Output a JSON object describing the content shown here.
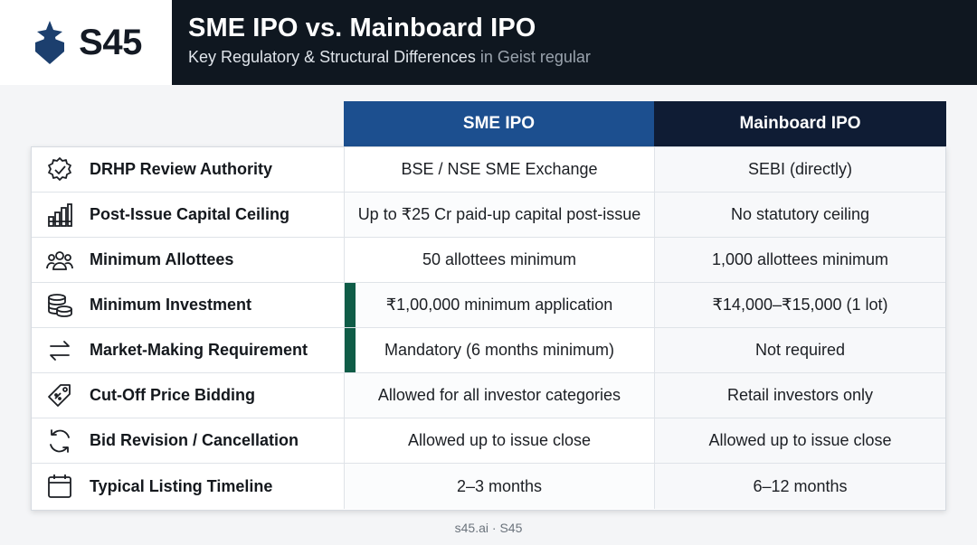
{
  "brand": {
    "name": "S45"
  },
  "header": {
    "title": "SME IPO vs. Mainboard IPO",
    "subtitle": "Key Regulatory & Structural Differences",
    "subtitle_note": " in Geist regular"
  },
  "table": {
    "columns": [
      "SME IPO",
      "Mainboard IPO"
    ],
    "rows": [
      {
        "icon": "verified-badge-icon",
        "label": "DRHP Review Authority",
        "sme": "BSE / NSE SME Exchange",
        "main": "SEBI (directly)",
        "accent": false
      },
      {
        "icon": "bar-chart-icon",
        "label": "Post-Issue Capital Ceiling",
        "sme": "Up to ₹25 Cr paid-up capital post-issue",
        "main": "No statutory ceiling",
        "accent": false
      },
      {
        "icon": "users-icon",
        "label": "Minimum Allottees",
        "sme": "50 allottees minimum",
        "main": "1,000 allottees minimum",
        "accent": false
      },
      {
        "icon": "coins-icon",
        "label": "Minimum Investment",
        "sme": "₹1,00,000 minimum application",
        "main": "₹14,000–₹15,000 (1 lot)",
        "accent": true
      },
      {
        "icon": "swap-arrows-icon",
        "label": "Market-Making Requirement",
        "sme": "Mandatory (6 months minimum)",
        "main": "Not required",
        "accent": true
      },
      {
        "icon": "price-tag-icon",
        "label": "Cut-Off Price Bidding",
        "sme": "Allowed for all investor categories",
        "main": "Retail investors only",
        "accent": false
      },
      {
        "icon": "refresh-icon",
        "label": "Bid Revision / Cancellation",
        "sme": "Allowed up to issue close",
        "main": "Allowed up to issue close",
        "accent": false
      },
      {
        "icon": "calendar-icon",
        "label": "Typical Listing Timeline",
        "sme": "2–3 months",
        "main": "6–12 months",
        "accent": false
      }
    ]
  },
  "footer": {
    "text": "s45.ai · S45"
  },
  "colors": {
    "header_bg": "#0f1720",
    "sme_header": "#1c4f8f",
    "main_header": "#0f1c34",
    "accent": "#0f5c47",
    "logo": "#1c3f6e"
  }
}
